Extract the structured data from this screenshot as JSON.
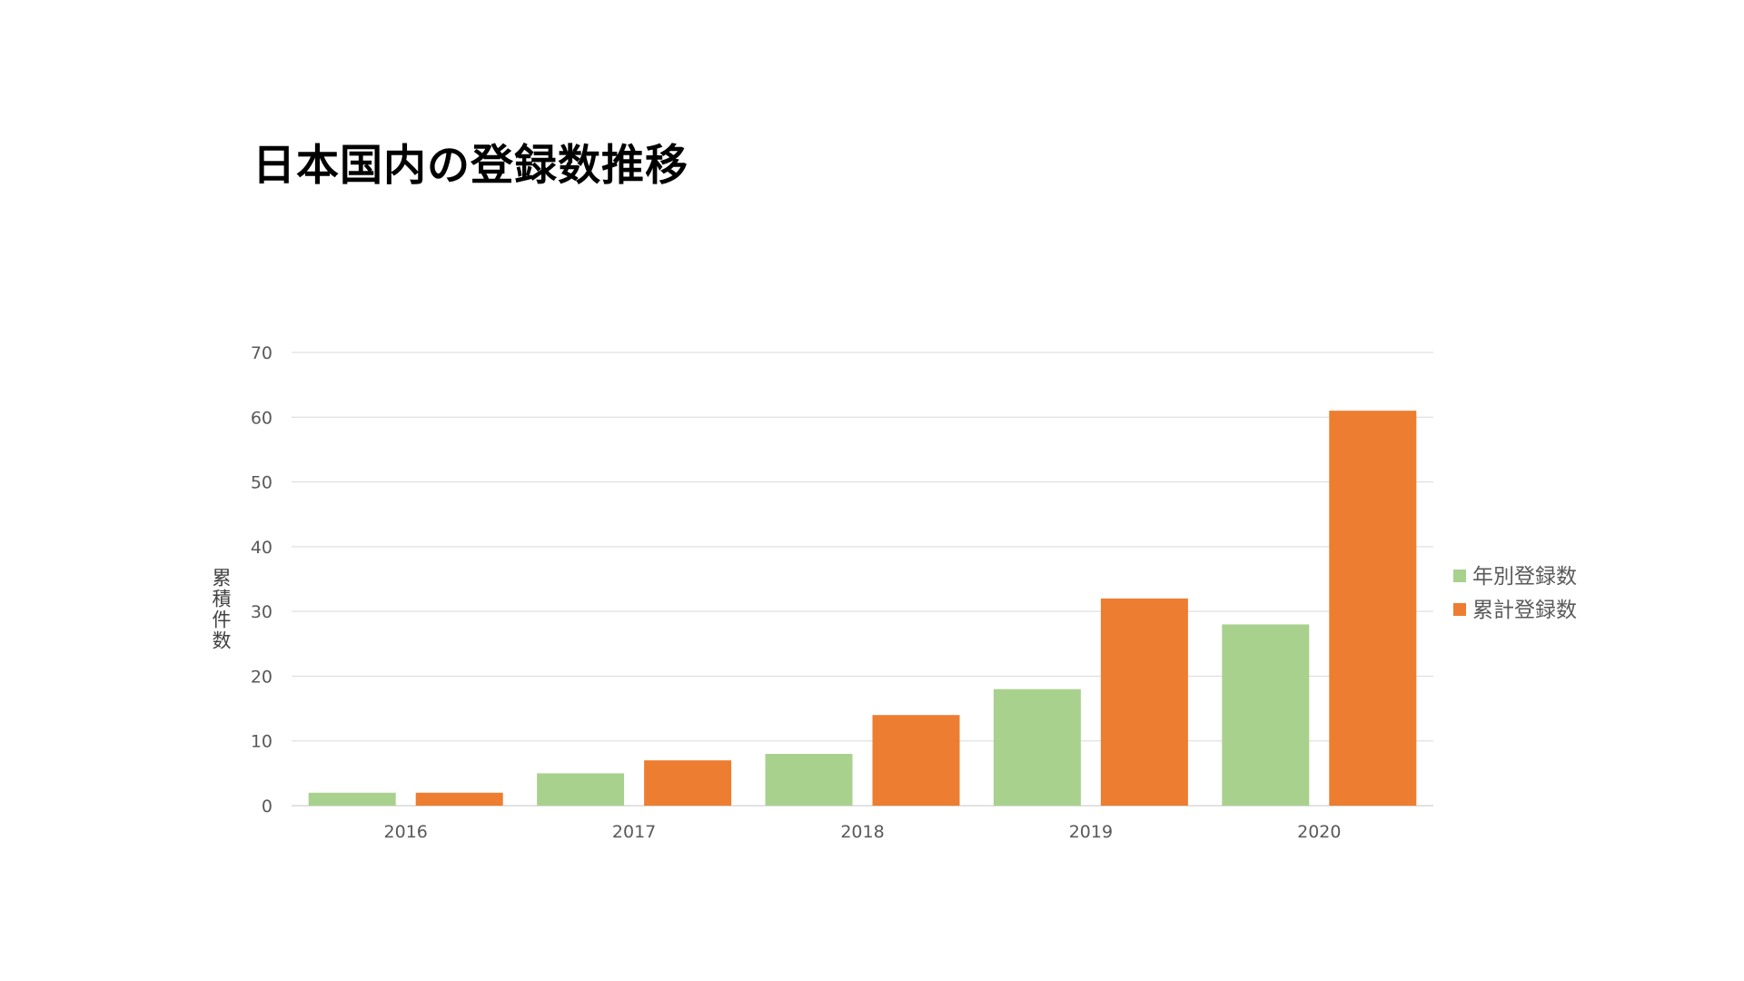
{
  "title": "日本国内の登録数推移",
  "colors": {
    "annual": "#a9d18e",
    "cumulative": "#ed7d31",
    "grid": "#d9d9d9",
    "axis_text": "#595959"
  },
  "chart_data": {
    "type": "bar",
    "title": "日本国内の登録数推移",
    "categories": [
      "2016",
      "2017",
      "2018",
      "2019",
      "2020"
    ],
    "series": [
      {
        "name": "年別登録数",
        "values": [
          2,
          5,
          8,
          18,
          28
        ],
        "color": "#a9d18e"
      },
      {
        "name": "累計登録数",
        "values": [
          2,
          7,
          14,
          32,
          61
        ],
        "color": "#ed7d31"
      }
    ],
    "xlabel": "",
    "ylabel": "累積件数",
    "ylim": [
      0,
      70
    ],
    "yticks": [
      0,
      10,
      20,
      30,
      40,
      50,
      60,
      70
    ],
    "grid": true,
    "legend_position": "right"
  }
}
